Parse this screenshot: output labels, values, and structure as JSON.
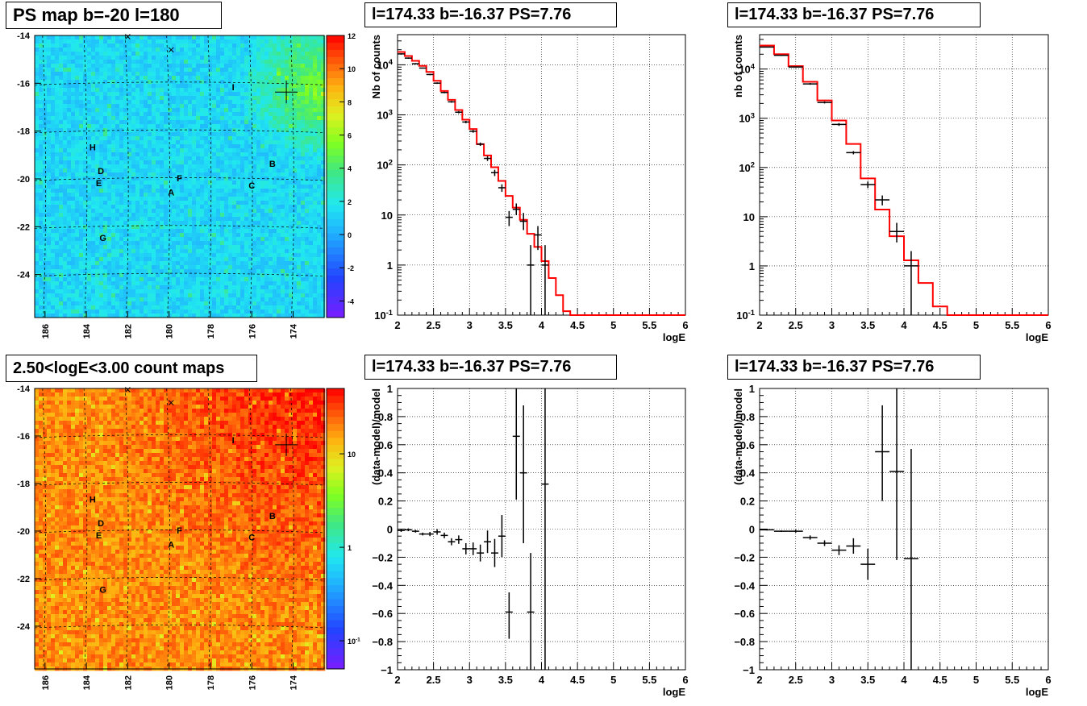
{
  "chart_data": [
    {
      "type": "heatmap",
      "title": "PS map b=-20 l=180",
      "xlim": [
        186.5,
        172.5
      ],
      "ylim": [
        -25.8,
        -14.0
      ],
      "xticks": [
        186,
        184,
        182,
        180,
        178,
        176,
        174
      ],
      "xtick_labels": [
        "186",
        "184",
        "182",
        "180",
        "178",
        "176",
        "174"
      ],
      "yticks": [
        -14,
        -16,
        -18,
        -20,
        -22,
        -24
      ],
      "ytick_labels": [
        "-14",
        "-16",
        "-18",
        "-20",
        "-22",
        "-24"
      ],
      "colorbar": {
        "scale": "linear",
        "range": [
          -5,
          12
        ],
        "ticks": [
          -4,
          -2,
          0,
          2,
          4,
          6,
          8,
          10,
          12
        ],
        "tick_labels": [
          "-4",
          "-2",
          "0",
          "2",
          "4",
          "6",
          "8",
          "10",
          "12"
        ]
      },
      "grid": "dashed galactic grid",
      "markers": [
        {
          "label": "H",
          "l": 183.7,
          "b": -18.8
        },
        {
          "label": "D",
          "l": 183.3,
          "b": -19.8
        },
        {
          "label": "E",
          "l": 183.4,
          "b": -20.3
        },
        {
          "label": "F",
          "l": 179.5,
          "b": -20.1
        },
        {
          "label": "A",
          "l": 179.9,
          "b": -20.7
        },
        {
          "label": "C",
          "l": 176.0,
          "b": -20.4
        },
        {
          "label": "B",
          "l": 175.0,
          "b": -19.5
        },
        {
          "label": "G",
          "l": 183.2,
          "b": -22.6
        },
        {
          "label": "I",
          "l": 176.9,
          "b": -16.3
        }
      ],
      "source": {
        "l": 174.33,
        "b": -16.37
      },
      "crosses": [
        {
          "l": 182.0,
          "b": -14.05
        },
        {
          "l": 179.9,
          "b": -14.6
        }
      ]
    },
    {
      "type": "line",
      "title": "l=174.33 b=-16.37 PS=7.76",
      "xlabel": "logE",
      "ylabel": "Nb of counts",
      "xlim": [
        2,
        6
      ],
      "ylim": [
        0.1,
        40000
      ],
      "yscale": "log",
      "xticks": [
        2,
        2.5,
        3,
        3.5,
        4,
        4.5,
        5,
        5.5,
        6
      ],
      "xtick_labels": [
        "2",
        "2.5",
        "3",
        "3.5",
        "4",
        "4.5",
        "5",
        "5.5",
        "6"
      ],
      "yticks": [
        0.1,
        1,
        10,
        100,
        1000,
        10000
      ],
      "ytick_labels": [
        "10^-1",
        "1",
        "10",
        "10^2",
        "10^3",
        "10^4"
      ],
      "grid": true,
      "series": [
        {
          "color": "#ff0000",
          "kind": "model histogram",
          "bin_width": 0.1,
          "x": [
            2.0,
            2.1,
            2.2,
            2.3,
            2.4,
            2.5,
            2.6,
            2.7,
            2.8,
            2.9,
            3.0,
            3.1,
            3.2,
            3.3,
            3.4,
            3.5,
            3.6,
            3.7,
            3.8,
            3.9,
            4.0,
            4.1,
            4.2,
            4.3,
            4.4,
            4.5,
            4.6,
            4.7,
            4.8,
            4.9,
            5.0,
            5.1,
            5.2,
            5.3,
            5.4,
            5.5,
            5.6,
            5.7,
            5.8,
            5.9
          ],
          "y": [
            18000,
            15000,
            12000,
            9500,
            7200,
            4800,
            3000,
            2000,
            1250,
            800,
            520,
            260,
            155,
            90,
            48,
            24,
            14,
            8,
            4.2,
            2.3,
            1.2,
            0.55,
            0.25,
            0.12,
            0.1,
            0.1,
            0.1,
            0.1,
            0.1,
            0.1,
            0.1,
            0.1,
            0.1,
            0.1,
            0.1,
            0.1,
            0.1,
            0.1,
            0.1,
            0.1
          ]
        },
        {
          "color": "#000000",
          "kind": "data points",
          "bin_width": 0.1,
          "points": [
            {
              "x": 2.05,
              "y": 16500,
              "lo": 16000,
              "hi": 17000
            },
            {
              "x": 2.15,
              "y": 13600,
              "lo": 13200,
              "hi": 14000
            },
            {
              "x": 2.25,
              "y": 10500,
              "lo": 10200,
              "hi": 10800
            },
            {
              "x": 2.35,
              "y": 8600,
              "lo": 8400,
              "hi": 8800
            },
            {
              "x": 2.45,
              "y": 6400,
              "lo": 6200,
              "hi": 6600
            },
            {
              "x": 2.55,
              "y": 4300,
              "lo": 4150,
              "hi": 4450
            },
            {
              "x": 2.65,
              "y": 2800,
              "lo": 2700,
              "hi": 2900
            },
            {
              "x": 2.75,
              "y": 1820,
              "lo": 1750,
              "hi": 1900
            },
            {
              "x": 2.85,
              "y": 1130,
              "lo": 1070,
              "hi": 1190
            },
            {
              "x": 2.95,
              "y": 720,
              "lo": 680,
              "hi": 760
            },
            {
              "x": 3.05,
              "y": 470,
              "lo": 440,
              "hi": 500
            },
            {
              "x": 3.15,
              "y": 260,
              "lo": 240,
              "hi": 280
            },
            {
              "x": 3.25,
              "y": 135,
              "lo": 120,
              "hi": 150
            },
            {
              "x": 3.35,
              "y": 70,
              "lo": 60,
              "hi": 80
            },
            {
              "x": 3.45,
              "y": 35,
              "lo": 29,
              "hi": 41
            },
            {
              "x": 3.55,
              "y": 9,
              "lo": 6,
              "hi": 12
            },
            {
              "x": 3.65,
              "y": 13,
              "lo": 10,
              "hi": 17
            },
            {
              "x": 3.75,
              "y": 7.5,
              "lo": 5,
              "hi": 11
            },
            {
              "x": 3.85,
              "y": 1,
              "lo": 0.1,
              "hi": 2.5
            },
            {
              "x": 3.95,
              "y": 4,
              "lo": 2,
              "hi": 6
            },
            {
              "x": 4.05,
              "y": 1,
              "lo": 0.1,
              "hi": 2.5
            }
          ]
        }
      ]
    },
    {
      "type": "line",
      "title": "l=174.33 b=-16.37 PS=7.76",
      "xlabel": "logE",
      "ylabel": "nb of counts",
      "xlim": [
        2,
        6
      ],
      "ylim": [
        0.1,
        50000
      ],
      "yscale": "log",
      "xticks": [
        2,
        2.5,
        3,
        3.5,
        4,
        4.5,
        5,
        5.5,
        6
      ],
      "xtick_labels": [
        "2",
        "2.5",
        "3",
        "3.5",
        "4",
        "4.5",
        "5",
        "5.5",
        "6"
      ],
      "yticks": [
        0.1,
        1,
        10,
        100,
        1000,
        10000
      ],
      "ytick_labels": [
        "10^-1",
        "1",
        "10",
        "10^2",
        "10^3",
        "10^4"
      ],
      "grid": true,
      "series": [
        {
          "color": "#ff0000",
          "kind": "model histogram",
          "bin_width": 0.2,
          "x": [
            2.0,
            2.2,
            2.4,
            2.6,
            2.8,
            3.0,
            3.2,
            3.4,
            3.6,
            3.8,
            4.0,
            4.2,
            4.4,
            4.6,
            4.8,
            5.0,
            5.2,
            5.4,
            5.6,
            5.8
          ],
          "y": [
            30000,
            20000,
            11500,
            5500,
            2300,
            900,
            300,
            60,
            14,
            4,
            1.3,
            0.45,
            0.15,
            0.1,
            0.1,
            0.1,
            0.1,
            0.1,
            0.1,
            0.1
          ]
        },
        {
          "color": "#000000",
          "kind": "data points",
          "bin_width": 0.2,
          "points": [
            {
              "x": 2.1,
              "y": 28000,
              "lo": 27500,
              "hi": 28500
            },
            {
              "x": 2.3,
              "y": 19000,
              "lo": 18600,
              "hi": 19400
            },
            {
              "x": 2.5,
              "y": 11000,
              "lo": 10700,
              "hi": 11300
            },
            {
              "x": 2.7,
              "y": 5000,
              "lo": 4800,
              "hi": 5200
            },
            {
              "x": 2.9,
              "y": 2100,
              "lo": 2000,
              "hi": 2200
            },
            {
              "x": 3.1,
              "y": 750,
              "lo": 700,
              "hi": 800
            },
            {
              "x": 3.3,
              "y": 200,
              "lo": 185,
              "hi": 215
            },
            {
              "x": 3.5,
              "y": 45,
              "lo": 38,
              "hi": 52
            },
            {
              "x": 3.7,
              "y": 22,
              "lo": 17,
              "hi": 27
            },
            {
              "x": 3.9,
              "y": 5,
              "lo": 3,
              "hi": 7.5
            },
            {
              "x": 4.1,
              "y": 1,
              "lo": 0.1,
              "hi": 2
            }
          ]
        }
      ]
    },
    {
      "type": "heatmap",
      "title": "2.50<logE<3.00 count maps",
      "xlim": [
        186.5,
        172.5
      ],
      "ylim": [
        -25.8,
        -14.0
      ],
      "xticks": [
        186,
        184,
        182,
        180,
        178,
        176,
        174
      ],
      "xtick_labels": [
        "186",
        "184",
        "182",
        "180",
        "178",
        "176",
        "174"
      ],
      "yticks": [
        -14,
        -16,
        -18,
        -20,
        -22,
        -24
      ],
      "ytick_labels": [
        "-14",
        "-16",
        "-18",
        "-20",
        "-22",
        "-24"
      ],
      "colorbar": {
        "scale": "log",
        "range": [
          0.05,
          50
        ],
        "ticks": [
          0.1,
          1,
          10
        ],
        "tick_labels": [
          "10^-1",
          "1",
          "10"
        ]
      },
      "grid": "dashed galactic grid",
      "markers": [
        {
          "label": "H",
          "l": 183.7,
          "b": -18.8
        },
        {
          "label": "D",
          "l": 183.3,
          "b": -19.8
        },
        {
          "label": "E",
          "l": 183.4,
          "b": -20.3
        },
        {
          "label": "F",
          "l": 179.5,
          "b": -20.1
        },
        {
          "label": "A",
          "l": 179.9,
          "b": -20.7
        },
        {
          "label": "C",
          "l": 176.0,
          "b": -20.4
        },
        {
          "label": "B",
          "l": 175.0,
          "b": -19.5
        },
        {
          "label": "G",
          "l": 183.2,
          "b": -22.6
        },
        {
          "label": "I",
          "l": 176.9,
          "b": -16.3
        }
      ],
      "source": {
        "l": 174.33,
        "b": -16.37
      },
      "crosses": [
        {
          "l": 182.0,
          "b": -14.05
        },
        {
          "l": 179.9,
          "b": -14.6
        }
      ]
    },
    {
      "type": "scatter",
      "title": "l=174.33 b=-16.37 PS=7.76",
      "xlabel": "logE",
      "ylabel": "(data-model)/model",
      "xlim": [
        2,
        6
      ],
      "ylim": [
        -1,
        1
      ],
      "xticks": [
        2,
        2.5,
        3,
        3.5,
        4,
        4.5,
        5,
        5.5,
        6
      ],
      "xtick_labels": [
        "2",
        "2.5",
        "3",
        "3.5",
        "4",
        "4.5",
        "5",
        "5.5",
        "6"
      ],
      "yticks": [
        -1,
        -0.8,
        -0.6,
        -0.4,
        -0.2,
        0,
        0.2,
        0.4,
        0.6,
        0.8,
        1
      ],
      "ytick_labels": [
        "−1",
        "−0.8",
        "−0.6",
        "−0.4",
        "−0.2",
        "0",
        "0.2",
        "0.4",
        "0.6",
        "0.8",
        "1"
      ],
      "grid": true,
      "series": [
        {
          "color": "#000000",
          "bin_width": 0.1,
          "points": [
            {
              "x": 2.05,
              "y": -0.01,
              "lo": -0.02,
              "hi": 0.0
            },
            {
              "x": 2.15,
              "y": -0.005,
              "lo": -0.015,
              "hi": 0.005
            },
            {
              "x": 2.25,
              "y": -0.015,
              "lo": -0.025,
              "hi": -0.005
            },
            {
              "x": 2.35,
              "y": -0.035,
              "lo": -0.045,
              "hi": -0.025
            },
            {
              "x": 2.45,
              "y": -0.035,
              "lo": -0.05,
              "hi": -0.02
            },
            {
              "x": 2.55,
              "y": -0.02,
              "lo": -0.04,
              "hi": 0.0
            },
            {
              "x": 2.65,
              "y": -0.045,
              "lo": -0.065,
              "hi": -0.025
            },
            {
              "x": 2.75,
              "y": -0.09,
              "lo": -0.115,
              "hi": -0.065
            },
            {
              "x": 2.85,
              "y": -0.075,
              "lo": -0.105,
              "hi": -0.045
            },
            {
              "x": 2.95,
              "y": -0.14,
              "lo": -0.18,
              "hi": -0.1
            },
            {
              "x": 3.05,
              "y": -0.14,
              "lo": -0.185,
              "hi": -0.095
            },
            {
              "x": 3.15,
              "y": -0.17,
              "lo": -0.23,
              "hi": -0.11
            },
            {
              "x": 3.25,
              "y": -0.09,
              "lo": -0.17,
              "hi": -0.01
            },
            {
              "x": 3.35,
              "y": -0.17,
              "lo": -0.27,
              "hi": -0.07
            },
            {
              "x": 3.45,
              "y": -0.05,
              "lo": -0.2,
              "hi": 0.1
            },
            {
              "x": 3.55,
              "y": -0.59,
              "lo": -0.78,
              "hi": -0.45
            },
            {
              "x": 3.65,
              "y": 0.66,
              "lo": 0.21,
              "hi": 1.0
            },
            {
              "x": 3.75,
              "y": 0.4,
              "lo": -0.1,
              "hi": 0.88
            },
            {
              "x": 3.85,
              "y": -0.59,
              "lo": -1.0,
              "hi": -0.17
            },
            {
              "x": 4.05,
              "y": 0.32,
              "lo": -1.0,
              "hi": 1.0
            }
          ]
        }
      ]
    },
    {
      "type": "scatter",
      "title": "l=174.33 b=-16.37 PS=7.76",
      "xlabel": "logE",
      "ylabel": "(data-model)/model",
      "xlim": [
        2,
        6
      ],
      "ylim": [
        -1,
        1
      ],
      "xticks": [
        2,
        2.5,
        3,
        3.5,
        4,
        4.5,
        5,
        5.5,
        6
      ],
      "xtick_labels": [
        "2",
        "2.5",
        "3",
        "3.5",
        "4",
        "4.5",
        "5",
        "5.5",
        "6"
      ],
      "yticks": [
        -1,
        -0.8,
        -0.6,
        -0.4,
        -0.2,
        0,
        0.2,
        0.4,
        0.6,
        0.8,
        1
      ],
      "ytick_labels": [
        "−1",
        "−0.8",
        "−0.6",
        "−0.4",
        "−0.2",
        "0",
        "0.2",
        "0.4",
        "0.6",
        "0.8",
        "1"
      ],
      "grid": true,
      "series": [
        {
          "color": "#000000",
          "bin_width": 0.2,
          "points": [
            {
              "x": 2.1,
              "y": -0.005,
              "lo": -0.01,
              "hi": 0.0
            },
            {
              "x": 2.3,
              "y": -0.015,
              "lo": -0.02,
              "hi": -0.01
            },
            {
              "x": 2.5,
              "y": -0.015,
              "lo": -0.025,
              "hi": -0.005
            },
            {
              "x": 2.7,
              "y": -0.06,
              "lo": -0.075,
              "hi": -0.045
            },
            {
              "x": 2.9,
              "y": -0.1,
              "lo": -0.12,
              "hi": -0.08
            },
            {
              "x": 3.1,
              "y": -0.15,
              "lo": -0.185,
              "hi": -0.115
            },
            {
              "x": 3.3,
              "y": -0.12,
              "lo": -0.175,
              "hi": -0.065
            },
            {
              "x": 3.5,
              "y": -0.25,
              "lo": -0.36,
              "hi": -0.14
            },
            {
              "x": 3.7,
              "y": 0.55,
              "lo": 0.2,
              "hi": 0.88
            },
            {
              "x": 3.9,
              "y": 0.41,
              "lo": -0.22,
              "hi": 1.0
            },
            {
              "x": 4.1,
              "y": -0.21,
              "lo": -1.0,
              "hi": 0.57
            }
          ]
        }
      ]
    }
  ]
}
